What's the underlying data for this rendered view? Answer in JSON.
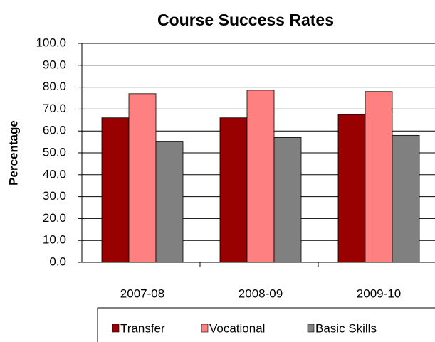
{
  "chart_data": {
    "type": "bar",
    "title": "Course Success Rates",
    "y_label": "Percentage",
    "categories": [
      "2007-08",
      "2008-09",
      "2009-10"
    ],
    "series": [
      {
        "name": "Transfer",
        "color": "#990000",
        "values": [
          66,
          66,
          67.5
        ]
      },
      {
        "name": "Vocational",
        "color": "#ff8080",
        "values": [
          77,
          78.6,
          78
        ]
      },
      {
        "name": "Basic Skills",
        "color": "#808080",
        "values": [
          55,
          57,
          58
        ]
      }
    ],
    "ylim": [
      0,
      100
    ],
    "yticks": [
      {
        "value": 0,
        "label": "0.0"
      },
      {
        "value": 10,
        "label": "10.0"
      },
      {
        "value": 20,
        "label": "20.0"
      },
      {
        "value": 30,
        "label": "30.0"
      },
      {
        "value": 40,
        "label": "40.0"
      },
      {
        "value": 50,
        "label": "50.0"
      },
      {
        "value": 60,
        "label": "60.0"
      },
      {
        "value": 70,
        "label": "70.0"
      },
      {
        "value": 80,
        "label": "80.0"
      },
      {
        "value": 90,
        "label": "90.0"
      },
      {
        "value": 100,
        "label": "100.0"
      }
    ],
    "grid": true,
    "legend": "bottom"
  }
}
